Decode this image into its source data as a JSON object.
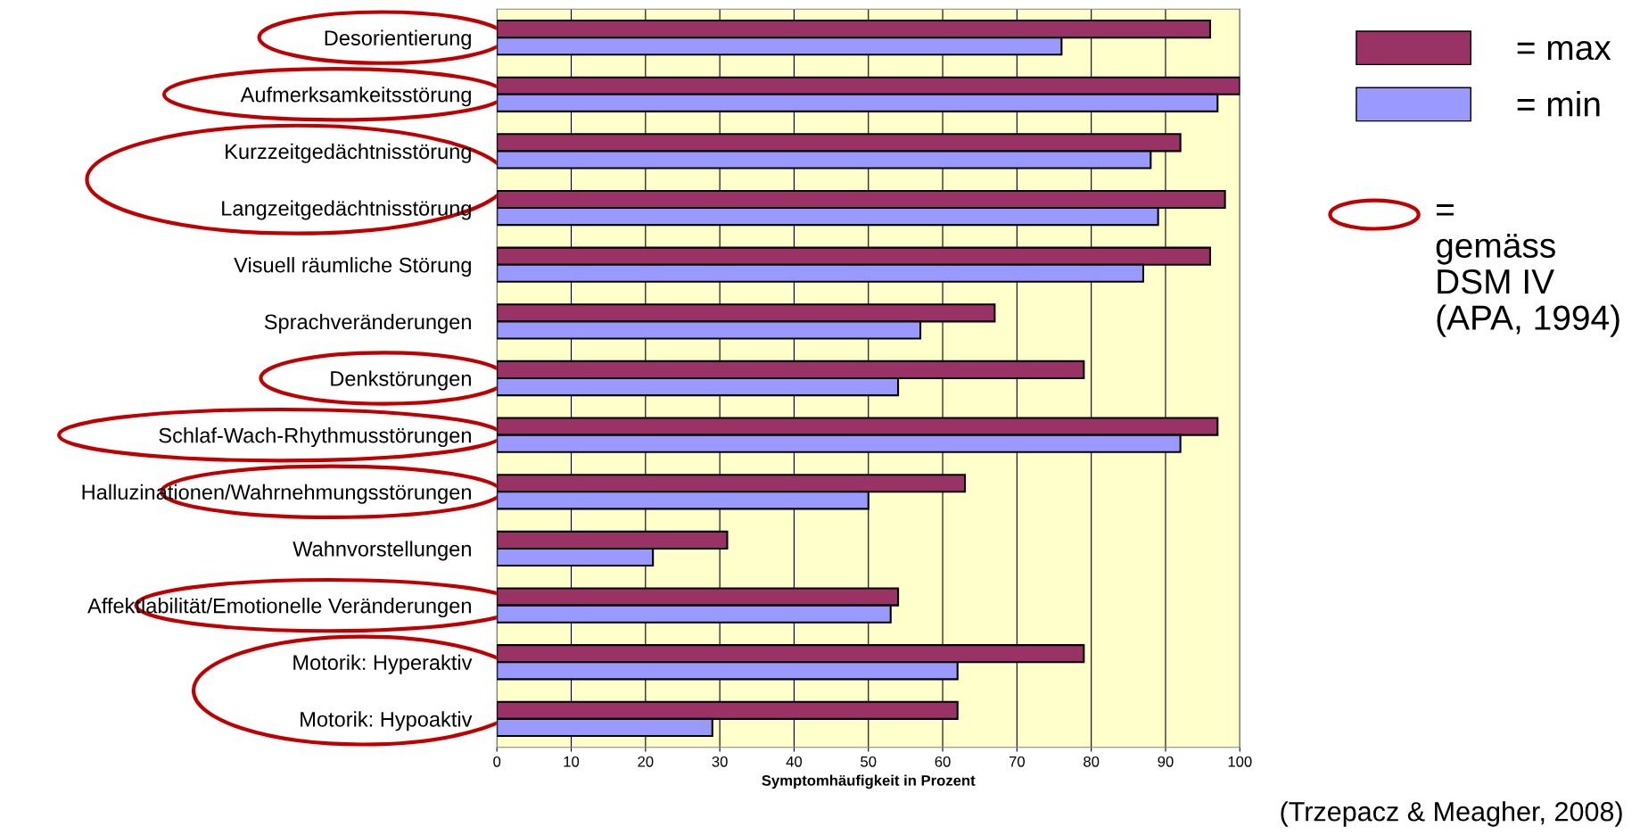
{
  "chart_data": {
    "type": "bar",
    "orientation": "horizontal",
    "xlabel": "Symptomhäufigkeit in Prozent",
    "categories": [
      "Desorientierung",
      "Aufmerksamkeitsstörung",
      "Kurzzeitgedächtnisstörung",
      "Langzeitgedächtnisstörung",
      "Visuell räumliche Störung",
      "Sprachveränderungen",
      "Denkstörungen",
      "Schlaf-Wach-Rhythmusstörungen",
      "Halluzinationen/Wahrnehmungsstörungen",
      "Wahnvorstellungen",
      "Affektlabilität/Emotionelle Veränderungen",
      "Motorik: Hyperaktiv",
      "Motorik: Hypoaktiv"
    ],
    "series": [
      {
        "name": "= max",
        "color": "#993366",
        "values": [
          96,
          100,
          92,
          98,
          96,
          67,
          79,
          97,
          63,
          31,
          54,
          79,
          62
        ]
      },
      {
        "name": "= min",
        "color": "#9999ff",
        "values": [
          76,
          97,
          88,
          89,
          87,
          57,
          54,
          92,
          50,
          21,
          53,
          62,
          29
        ]
      }
    ],
    "xlim": [
      0,
      100
    ],
    "xticks": [
      0,
      10,
      20,
      30,
      40,
      50,
      60,
      70,
      80,
      90,
      100
    ],
    "grid": "x",
    "legend": "top right",
    "annotations": [
      "=\ngemäss\nDSM IV\n(APA, 1994)",
      "(Trzepacz & Meagher, 2008)"
    ]
  }
}
